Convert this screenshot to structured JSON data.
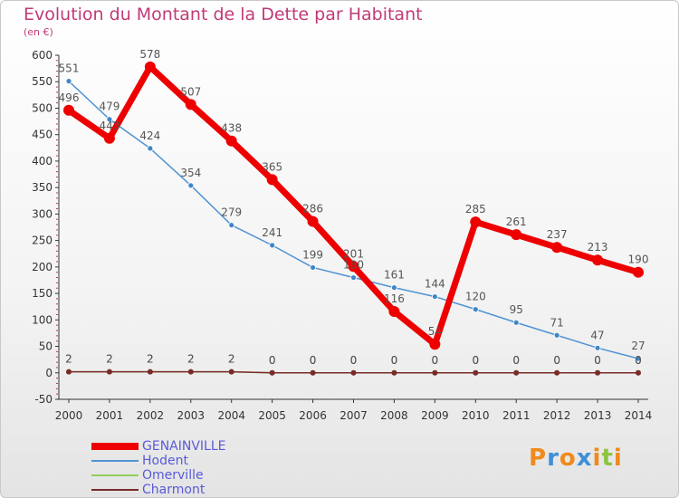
{
  "title": "Evolution du Montant de la Dette par Habitant",
  "unit": "(en €)",
  "chart_data": {
    "type": "line",
    "title": "Evolution du Montant de la Dette par Habitant",
    "ylabel": "(en €)",
    "xlabel": "",
    "ylim": [
      -50,
      600
    ],
    "yticks": [
      -50,
      0,
      50,
      100,
      150,
      200,
      250,
      300,
      350,
      400,
      450,
      500,
      550,
      600
    ],
    "grid": false,
    "legend_placement": "bottom-left",
    "x": [
      "2000",
      "2001",
      "2002",
      "2003",
      "2004",
      "2005",
      "2006",
      "2007",
      "2008",
      "2009",
      "2010",
      "2011",
      "2012",
      "2013",
      "2014"
    ],
    "series": [
      {
        "name": "GENAINVILLE",
        "color": "#ee0000",
        "values": [
          496,
          443,
          578,
          507,
          438,
          365,
          286,
          201,
          116,
          54,
          285,
          261,
          237,
          213,
          190
        ]
      },
      {
        "name": "Hodent",
        "color": "#4f93d3",
        "values": [
          551,
          479,
          424,
          354,
          279,
          241,
          199,
          180,
          161,
          144,
          120,
          95,
          71,
          47,
          27
        ]
      },
      {
        "name": "Omerville",
        "color": "#8fd05e",
        "values": [
          2,
          2,
          2,
          2,
          2,
          0,
          0,
          0,
          0,
          0,
          0,
          0,
          0,
          0,
          0
        ]
      },
      {
        "name": "Charmont",
        "color": "#7a2a2a",
        "values": [
          2,
          2,
          2,
          2,
          2,
          0,
          0,
          0,
          0,
          0,
          0,
          0,
          0,
          0,
          0
        ]
      }
    ]
  },
  "logo": {
    "text": "Proxiti",
    "letters": [
      {
        "char": "P",
        "color": "#ef8a1c"
      },
      {
        "char": "r",
        "color": "#3f8fd6"
      },
      {
        "char": "o",
        "color": "#ef8a1c"
      },
      {
        "char": "x",
        "color": "#3f8fd6"
      },
      {
        "char": "i",
        "color": "#ef8a1c"
      },
      {
        "char": "t",
        "color": "#8cc43f"
      },
      {
        "char": "i",
        "color": "#ef8a1c"
      }
    ]
  }
}
